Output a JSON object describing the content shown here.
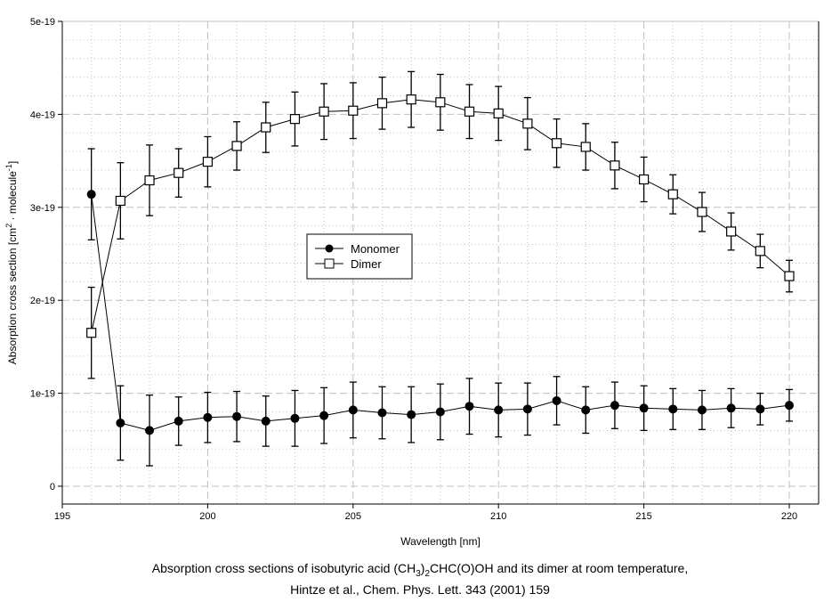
{
  "chart_data": {
    "type": "line",
    "title": "",
    "xlabel": "Wavelength [nm]",
    "ylabel": {
      "main": "Absorption cross section [cm",
      "sup1": "2",
      "mid": " · molecule",
      "sup2": "-1",
      "end": "]"
    },
    "xlim": [
      195,
      221
    ],
    "ylim": [
      -1.9e-20,
      5e-19
    ],
    "x_ticks": [
      "195",
      "200",
      "205",
      "210",
      "215",
      "220"
    ],
    "x_tick_values": [
      195,
      200,
      205,
      210,
      215,
      220
    ],
    "y_ticks": [
      "0",
      "1e-19",
      "2e-19",
      "3e-19",
      "4e-19",
      "5e-19"
    ],
    "y_tick_values": [
      0,
      1e-19,
      2e-19,
      3e-19,
      4e-19,
      5e-19
    ],
    "grid": true,
    "legend_position": "center-left",
    "x": [
      196,
      197,
      198,
      199,
      200,
      201,
      202,
      203,
      204,
      205,
      206,
      207,
      208,
      209,
      210,
      211,
      212,
      213,
      214,
      215,
      216,
      217,
      218,
      219,
      220
    ],
    "series": [
      {
        "name": "Monomer",
        "marker": "filled-circle",
        "values": [
          3.14e-19,
          6.8e-20,
          6e-20,
          7e-20,
          7.4e-20,
          7.5e-20,
          7e-20,
          7.3e-20,
          7.6e-20,
          8.2e-20,
          7.9e-20,
          7.7e-20,
          8e-20,
          8.6e-20,
          8.2e-20,
          8.3e-20,
          9.2e-20,
          8.2e-20,
          8.7e-20,
          8.4e-20,
          8.3e-20,
          8.2e-20,
          8.4e-20,
          8.3e-20,
          8.7e-20
        ],
        "errors": [
          4.9e-20,
          4e-20,
          3.8e-20,
          2.6e-20,
          2.7e-20,
          2.7e-20,
          2.7e-20,
          3e-20,
          3e-20,
          3e-20,
          2.8e-20,
          3e-20,
          3e-20,
          3e-20,
          2.9e-20,
          2.8e-20,
          2.6e-20,
          2.5e-20,
          2.5e-20,
          2.4e-20,
          2.2e-20,
          2.1e-20,
          2.1e-20,
          1.7e-20,
          1.7e-20
        ]
      },
      {
        "name": "Dimer",
        "marker": "open-square",
        "values": [
          1.65e-19,
          3.07e-19,
          3.29e-19,
          3.37e-19,
          3.49e-19,
          3.66e-19,
          3.86e-19,
          3.95e-19,
          4.03e-19,
          4.04e-19,
          4.12e-19,
          4.16e-19,
          4.13e-19,
          4.03e-19,
          4.01e-19,
          3.9e-19,
          3.69e-19,
          3.65e-19,
          3.45e-19,
          3.3e-19,
          3.14e-19,
          2.95e-19,
          2.74e-19,
          2.53e-19,
          2.26e-19
        ],
        "errors": [
          4.9e-20,
          4.1e-20,
          3.8e-20,
          2.6e-20,
          2.7e-20,
          2.6e-20,
          2.7e-20,
          2.9e-20,
          3e-20,
          3e-20,
          2.8e-20,
          3e-20,
          3e-20,
          2.9e-20,
          2.9e-20,
          2.8e-20,
          2.6e-20,
          2.5e-20,
          2.5e-20,
          2.4e-20,
          2.1e-20,
          2.1e-20,
          2e-20,
          1.8e-20,
          1.7e-20
        ]
      }
    ],
    "colors": {
      "line": "#000000",
      "grid": "#c0c0c0"
    }
  },
  "caption": {
    "line1_a": "Absorption cross sections of isobutyric acid (CH",
    "line1_sub1": "3",
    "line1_b": ")",
    "line1_sub2": "2",
    "line1_c": "CHC(O)OH and its dimer at room temperature,",
    "line2": "Hintze et al., Chem. Phys. Lett. 343 (2001) 159"
  }
}
